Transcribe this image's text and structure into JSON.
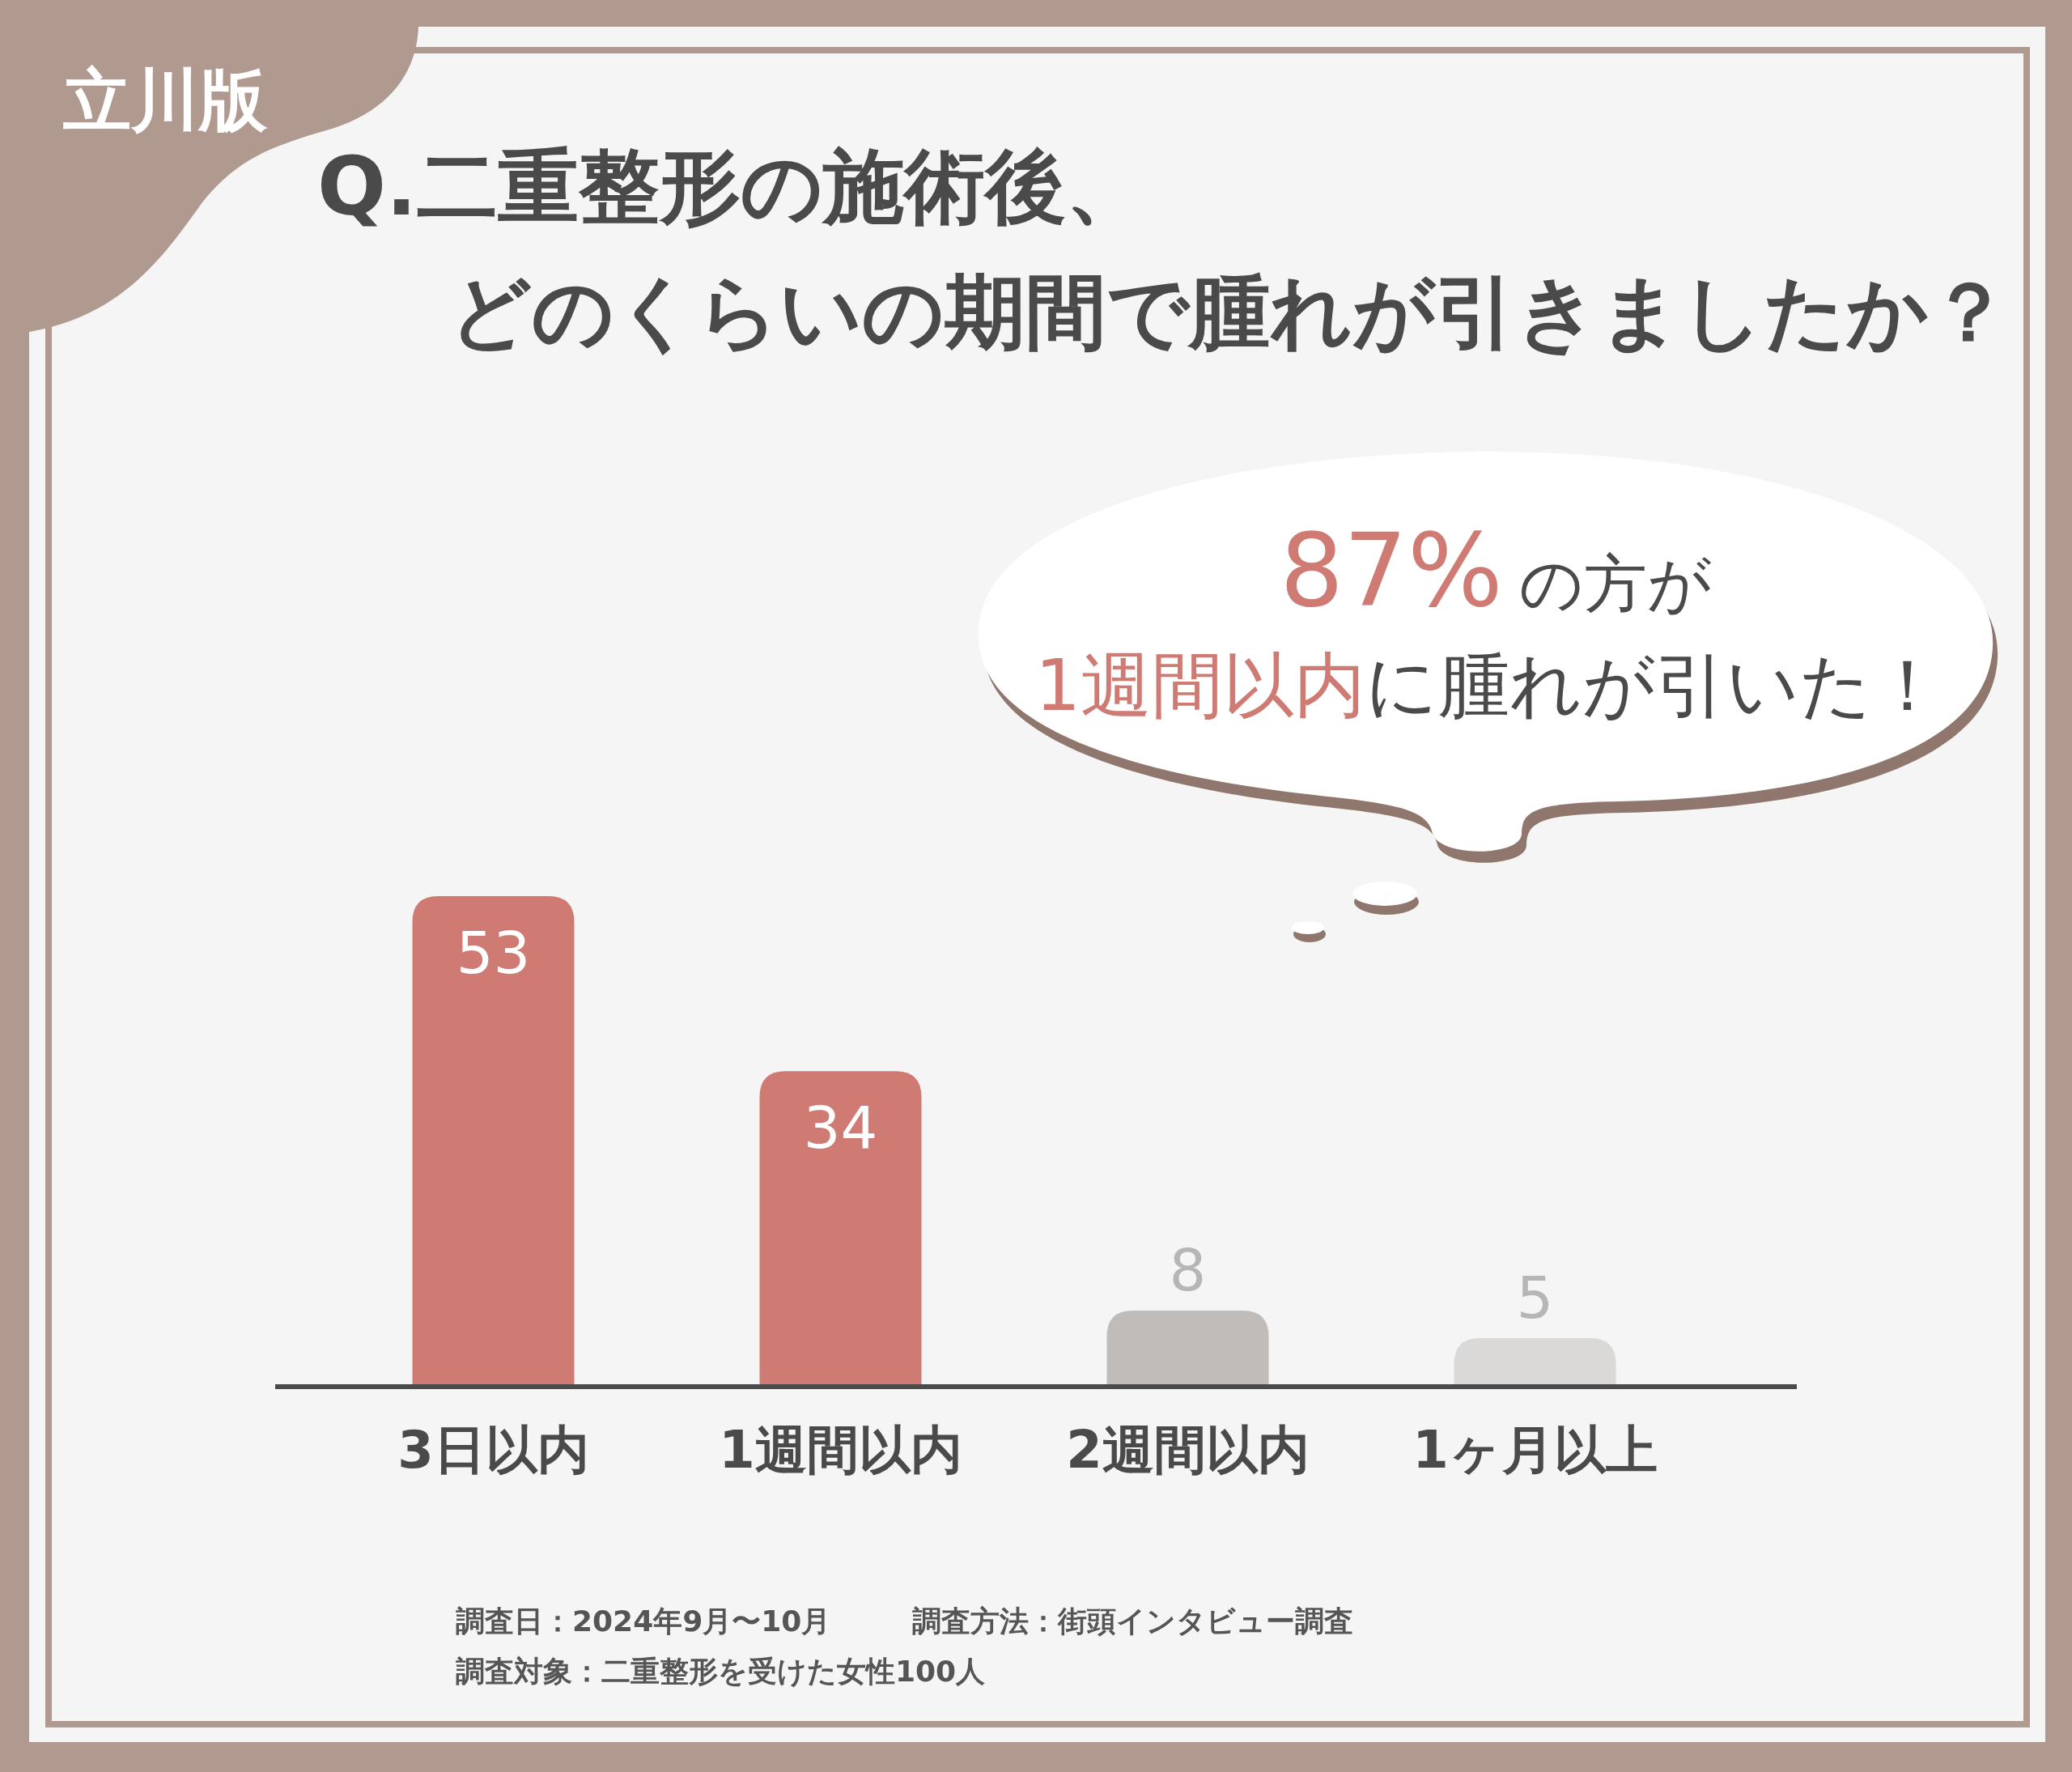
{
  "chart_data": {
    "type": "bar",
    "title": "Q.二重整形の施術後、どのくらいの期間で腫れが引きましたか？",
    "categories": [
      "3日以内",
      "1週間以内",
      "2週間以内",
      "1ヶ月以上"
    ],
    "values": [
      53,
      34,
      8,
      5
    ],
    "colors": [
      "#cf7a73",
      "#cf7a73",
      "#bfbcba",
      "#dad9d8"
    ],
    "data_labels": true,
    "annotations": [
      "立川版",
      "87%",
      "の方が",
      "1週間以内",
      "に腫れが引いた！",
      "調査日：2024年9月〜10月",
      "調査方法：街頭インタビュー調査",
      "調査対象：二重整形を受けた女性100人"
    ]
  }
}
